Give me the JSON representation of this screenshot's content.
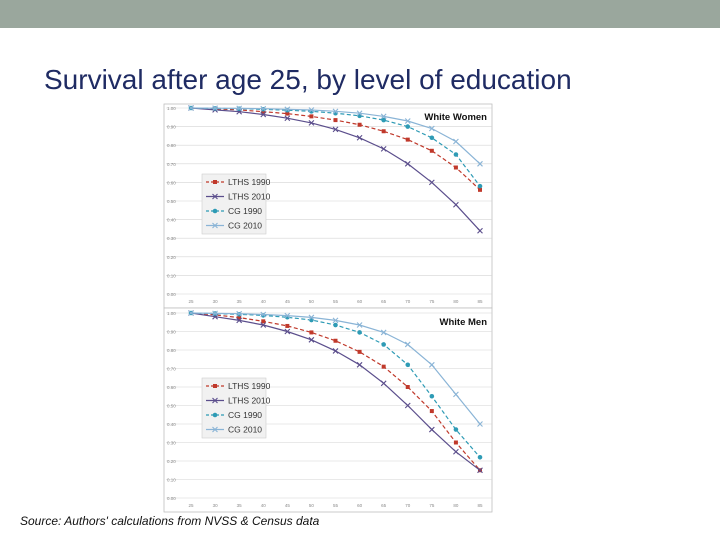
{
  "slide": {
    "title": "Survival after age 25, by level of education",
    "source": "Source: Authors' calculations from NVSS & Census data"
  },
  "colors": {
    "topbar": "#9aa79d",
    "title": "#1f2b63",
    "LTHS 1990": "#c0392b",
    "LTHS 2010": "#5b4e8c",
    "CG 1990": "#2e9bb5",
    "CG 2010": "#8ab4d6"
  },
  "chart_data": [
    {
      "type": "line",
      "title": "White Women",
      "x": [
        25,
        30,
        35,
        40,
        45,
        50,
        55,
        60,
        65,
        70,
        75,
        80,
        85
      ],
      "ylim": [
        0.0,
        1.0
      ],
      "yticks": [
        "0.00",
        "0.10",
        "0.20",
        "0.30",
        "0.40",
        "0.50",
        "0.60",
        "0.70",
        "0.80",
        "0.90",
        "1.00"
      ],
      "xticks": [
        "25",
        "30",
        "35",
        "40",
        "45",
        "50",
        "55",
        "60",
        "65",
        "70",
        "75",
        "80",
        "85"
      ],
      "grid": true,
      "legend": "left-middle",
      "series": [
        {
          "name": "LTHS 1990",
          "style": "dashed",
          "marker": "square",
          "values": [
            1.0,
            0.995,
            0.99,
            0.98,
            0.97,
            0.955,
            0.935,
            0.91,
            0.875,
            0.83,
            0.77,
            0.68,
            0.56
          ]
        },
        {
          "name": "LTHS 2010",
          "style": "solid",
          "marker": "x",
          "values": [
            1.0,
            0.99,
            0.98,
            0.965,
            0.945,
            0.92,
            0.885,
            0.84,
            0.78,
            0.7,
            0.6,
            0.48,
            0.34
          ]
        },
        {
          "name": "CG 1990",
          "style": "dashed",
          "marker": "circle",
          "values": [
            1.0,
            0.998,
            0.996,
            0.993,
            0.988,
            0.982,
            0.972,
            0.958,
            0.935,
            0.9,
            0.84,
            0.75,
            0.58
          ]
        },
        {
          "name": "CG 2010",
          "style": "solid",
          "marker": "x",
          "values": [
            1.0,
            0.999,
            0.998,
            0.996,
            0.993,
            0.989,
            0.982,
            0.972,
            0.955,
            0.93,
            0.89,
            0.82,
            0.7
          ]
        }
      ]
    },
    {
      "type": "line",
      "title": "White Men",
      "x": [
        25,
        30,
        35,
        40,
        45,
        50,
        55,
        60,
        65,
        70,
        75,
        80,
        85
      ],
      "ylim": [
        0.0,
        1.0
      ],
      "yticks": [
        "0.00",
        "0.10",
        "0.20",
        "0.30",
        "0.40",
        "0.50",
        "0.60",
        "0.70",
        "0.80",
        "0.90",
        "1.00"
      ],
      "xticks": [
        "25",
        "30",
        "35",
        "40",
        "45",
        "50",
        "55",
        "60",
        "65",
        "70",
        "75",
        "80",
        "85"
      ],
      "grid": true,
      "legend": "left-middle",
      "series": [
        {
          "name": "LTHS 1990",
          "style": "dashed",
          "marker": "square",
          "values": [
            1.0,
            0.99,
            0.975,
            0.955,
            0.93,
            0.895,
            0.85,
            0.79,
            0.71,
            0.6,
            0.47,
            0.3,
            0.15
          ]
        },
        {
          "name": "LTHS 2010",
          "style": "solid",
          "marker": "x",
          "values": [
            1.0,
            0.98,
            0.96,
            0.935,
            0.9,
            0.855,
            0.795,
            0.72,
            0.62,
            0.5,
            0.37,
            0.25,
            0.15
          ]
        },
        {
          "name": "CG 1990",
          "style": "dashed",
          "marker": "circle",
          "values": [
            1.0,
            0.997,
            0.993,
            0.987,
            0.977,
            0.962,
            0.935,
            0.895,
            0.83,
            0.72,
            0.55,
            0.37,
            0.22
          ]
        },
        {
          "name": "CG 2010",
          "style": "solid",
          "marker": "x",
          "values": [
            1.0,
            0.998,
            0.996,
            0.992,
            0.986,
            0.976,
            0.96,
            0.935,
            0.895,
            0.83,
            0.72,
            0.56,
            0.4
          ]
        }
      ]
    }
  ]
}
